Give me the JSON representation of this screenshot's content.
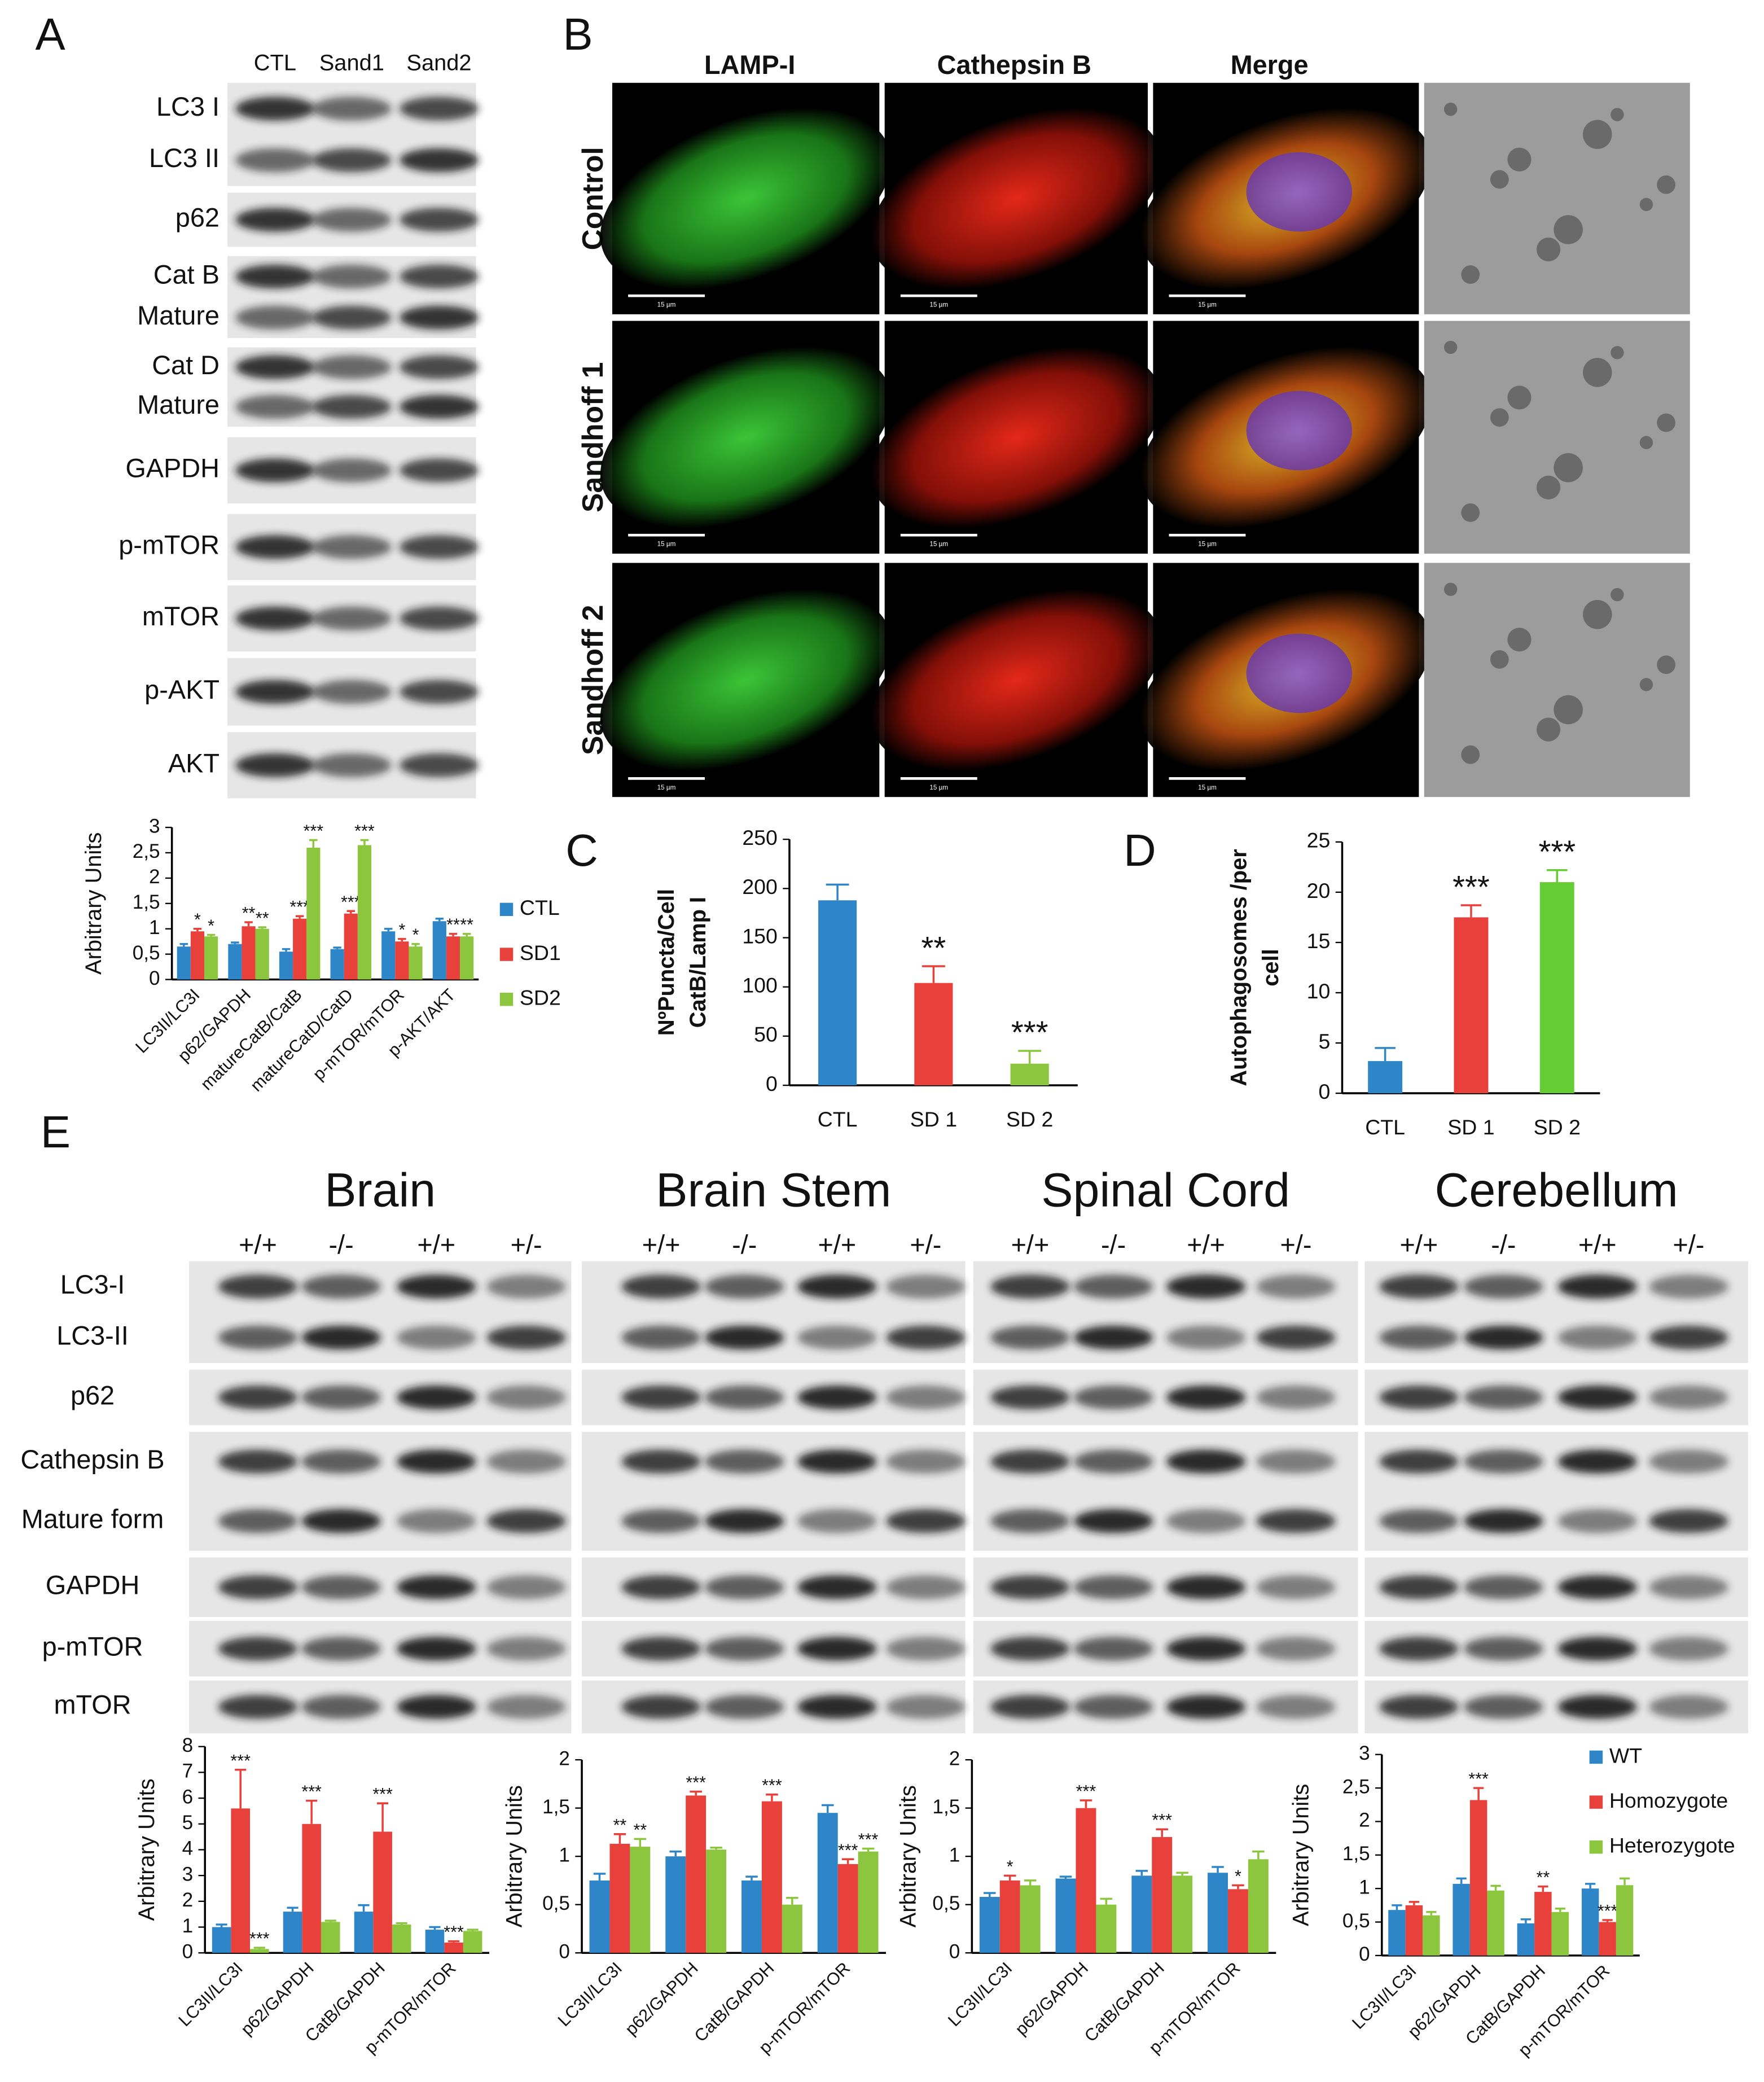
{
  "panel_labels": [
    "A",
    "B",
    "C",
    "D",
    "E"
  ],
  "blot_a": {
    "lanes": [
      "CTL",
      "Sand1",
      "Sand2"
    ],
    "rows": [
      [
        "LC3 I",
        "LC3 II"
      ],
      [
        "p62"
      ],
      [
        "Cat B",
        "Mature"
      ],
      [
        "Cat D",
        "Mature"
      ],
      [
        "GAPDH"
      ],
      [
        "p-mTOR"
      ],
      [
        "mTOR"
      ],
      [
        "p-AKT"
      ],
      [
        "AKT"
      ]
    ]
  },
  "microscopy": {
    "columns": [
      "LAMP-I",
      "Cathepsin B",
      "Merge"
    ],
    "rows": [
      "Control",
      "Sandhoff 1",
      "Sandhoff 2"
    ],
    "scale_label": "15 µm"
  },
  "blot_e": {
    "tissues": [
      "Brain",
      "Brain Stem",
      "Spinal Cord",
      "Cerebellum"
    ],
    "genotypes": [
      "+/+",
      "-/-",
      "+/+",
      "+/-"
    ],
    "rows": [
      [
        "LC3-I",
        "LC3-II"
      ],
      [
        "p62"
      ],
      [
        "Cathepsin B",
        "Mature form"
      ],
      [
        "GAPDH"
      ],
      [
        "p-mTOR"
      ],
      [
        "mTOR"
      ]
    ]
  },
  "chart_data": [
    {
      "type": "bar",
      "ylabel": "Arbitrary Units",
      "legend": "right",
      "categories": [
        "LC3II/LC3I",
        "p62/GAPDH",
        "matureCatB/CatB",
        "matureCatD/CatD",
        "p-mTOR/mTOR",
        "p-AKT/AKT"
      ],
      "ylim": [
        0,
        3
      ],
      "yticks": [
        0,
        {
          "value": 0.5,
          "label": "0,5"
        },
        1,
        {
          "value": 1.5,
          "label": "1,5"
        },
        2,
        {
          "value": 2.5,
          "label": "2,5"
        },
        3
      ],
      "series": [
        {
          "name": "CTL",
          "color": "#2e86c9",
          "values": [
            0.65,
            0.7,
            0.55,
            0.6,
            0.95,
            1.15
          ],
          "errors": [
            0.05,
            0.03,
            0.05,
            0.03,
            0.05,
            0.05
          ]
        },
        {
          "name": "SD1",
          "color": "#e8413c",
          "values": [
            0.95,
            1.05,
            1.2,
            1.3,
            0.75,
            0.85
          ],
          "errors": [
            0.05,
            0.08,
            0.05,
            0.05,
            0.05,
            0.05
          ],
          "significance": [
            "*",
            "**",
            "***",
            "***",
            "*",
            "**"
          ]
        },
        {
          "name": "SD2",
          "color": "#8cc63e",
          "values": [
            0.85,
            1.0,
            2.6,
            2.65,
            0.65,
            0.85
          ],
          "errors": [
            0.03,
            0.03,
            0.15,
            0.1,
            0.05,
            0.05
          ],
          "significance": [
            "*",
            "**",
            "***",
            "***",
            "*",
            "**"
          ]
        }
      ]
    },
    {
      "type": "bar",
      "ylabel": [
        "NºPuncta/Cell",
        "CatB/Lamp I"
      ],
      "categories": [
        "CTL",
        "SD 1",
        "SD 2"
      ],
      "values": [
        188,
        104,
        22
      ],
      "errors": [
        16,
        17,
        13
      ],
      "colors": [
        "#2e86c9",
        "#e8413c",
        "#8cc63e"
      ],
      "significance": [
        null,
        "**",
        "***"
      ],
      "ylim": [
        0,
        250
      ],
      "yticks": [
        0,
        50,
        100,
        150,
        200,
        250
      ]
    },
    {
      "type": "bar",
      "ylabel": [
        "Autophagosomes /per",
        "cell"
      ],
      "categories": [
        "CTL",
        "SD 1",
        "SD 2"
      ],
      "values": [
        3.2,
        17.5,
        21
      ],
      "errors": [
        1.3,
        1.2,
        1.2
      ],
      "colors": [
        "#2e86c9",
        "#e8413c",
        "#66cc33"
      ],
      "significance": [
        null,
        "***",
        "***"
      ],
      "ylim": [
        0,
        25
      ],
      "yticks": [
        0,
        5,
        10,
        15,
        20,
        25
      ]
    },
    {
      "type": "bar",
      "ylabel": "Arbitrary Units",
      "categories": [
        "LC3II/LC3I",
        "p62/GAPDH",
        "CatB/GAPDH",
        "p-mTOR/mTOR"
      ],
      "ylim": [
        0,
        8
      ],
      "yticks": [
        0,
        1,
        2,
        3,
        4,
        5,
        6,
        7,
        8
      ],
      "series": [
        {
          "color": "#2e86c9",
          "values": [
            1,
            1.6,
            1.6,
            0.9
          ],
          "errors": [
            0.1,
            0.15,
            0.25,
            0.1
          ]
        },
        {
          "color": "#e8413c",
          "values": [
            5.6,
            5.0,
            4.7,
            0.4
          ],
          "errors": [
            1.5,
            0.9,
            1.1,
            0.05
          ],
          "significance": [
            "***",
            "***",
            "***",
            "***"
          ]
        },
        {
          "color": "#8cc63e",
          "values": [
            0.15,
            1.2,
            1.1,
            0.85
          ],
          "errors": [
            0.05,
            0.05,
            0.05,
            0.05
          ],
          "significance": [
            "***",
            null,
            null,
            null
          ]
        }
      ]
    },
    {
      "type": "bar",
      "ylabel": "Arbitrary Units",
      "categories": [
        "LC3II/LC3I",
        "p62/GAPDH",
        "CatB/GAPDH",
        "p-mTOR/mTOR"
      ],
      "ylim": [
        0,
        2
      ],
      "yticks": [
        0,
        {
          "value": 0.5,
          "label": "0,5"
        },
        1,
        {
          "value": 1.5,
          "label": "1,5"
        },
        2
      ],
      "series": [
        {
          "color": "#2e86c9",
          "values": [
            0.75,
            1.0,
            0.75,
            1.45
          ],
          "errors": [
            0.07,
            0.05,
            0.04,
            0.08
          ]
        },
        {
          "color": "#e8413c",
          "values": [
            1.13,
            1.63,
            1.57,
            0.92
          ],
          "errors": [
            0.1,
            0.04,
            0.07,
            0.05
          ],
          "significance": [
            "**",
            "***",
            "***",
            "***"
          ]
        },
        {
          "color": "#8cc63e",
          "values": [
            1.1,
            1.07,
            0.5,
            1.05
          ],
          "errors": [
            0.08,
            0.02,
            0.07,
            0.03
          ],
          "significance": [
            "**",
            null,
            null,
            "***"
          ]
        }
      ]
    },
    {
      "type": "bar",
      "ylabel": "Arbitrary Units",
      "categories": [
        "LC3II/LC3I",
        "p62/GAPDH",
        "CatB/GAPDH",
        "p-mTOR/mTOR"
      ],
      "ylim": [
        0,
        2
      ],
      "yticks": [
        0,
        {
          "value": 0.5,
          "label": "0,5"
        },
        1,
        {
          "value": 1.5,
          "label": "1,5"
        },
        2
      ],
      "series": [
        {
          "color": "#2e86c9",
          "values": [
            0.58,
            0.77,
            0.8,
            0.83
          ],
          "errors": [
            0.04,
            0.02,
            0.05,
            0.06
          ]
        },
        {
          "color": "#e8413c",
          "values": [
            0.75,
            1.5,
            1.2,
            0.66
          ],
          "errors": [
            0.05,
            0.08,
            0.08,
            0.04
          ],
          "significance": [
            "*",
            "***",
            "***",
            "*"
          ]
        },
        {
          "color": "#8cc63e",
          "values": [
            0.7,
            0.5,
            0.8,
            0.97
          ],
          "errors": [
            0.05,
            0.06,
            0.03,
            0.08
          ]
        }
      ]
    },
    {
      "type": "bar",
      "ylabel": "Arbitrary Units",
      "legend": "right",
      "categories": [
        "LC3II/LC3I",
        "p62/GAPDH",
        "CatB/GAPDH",
        "p-mTOR/mTOR"
      ],
      "ylim": [
        0,
        3
      ],
      "yticks": [
        0,
        {
          "value": 0.5,
          "label": "0,5"
        },
        1,
        {
          "value": 1.5,
          "label": "1,5"
        },
        2,
        {
          "value": 2.5,
          "label": "2,5"
        },
        3
      ],
      "series": [
        {
          "name": "WT",
          "color": "#2e86c9",
          "values": [
            0.68,
            1.07,
            0.48,
            1.0
          ],
          "errors": [
            0.07,
            0.08,
            0.06,
            0.07
          ]
        },
        {
          "name": "Homozygote",
          "color": "#e8413c",
          "values": [
            0.75,
            2.32,
            0.95,
            0.5
          ],
          "errors": [
            0.05,
            0.18,
            0.08,
            0.03
          ],
          "significance": [
            null,
            "***",
            "**",
            "***"
          ]
        },
        {
          "name": "Heterozygote",
          "color": "#8cc63e",
          "values": [
            0.6,
            0.97,
            0.65,
            1.05
          ],
          "errors": [
            0.05,
            0.07,
            0.05,
            0.1
          ]
        }
      ]
    }
  ]
}
